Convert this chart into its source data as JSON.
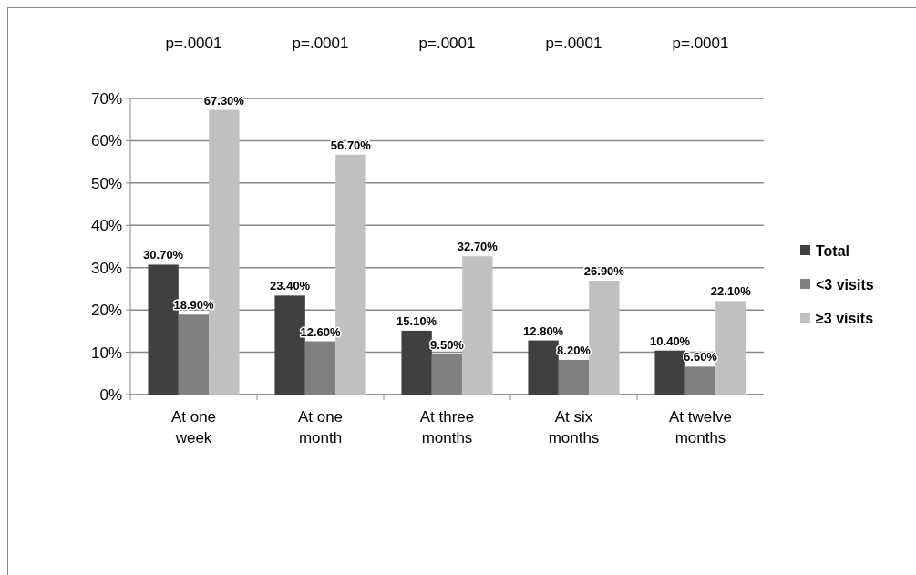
{
  "chart_data": {
    "type": "bar",
    "categories": [
      "At one week",
      "At one month",
      "At three months",
      "At six months",
      "At twelve months"
    ],
    "series": [
      {
        "name": "Total",
        "color": "#404040",
        "values": [
          30.7,
          23.4,
          15.1,
          12.8,
          10.4
        ],
        "value_labels": [
          "30.70%",
          "23.40%",
          "15.10%",
          "12.80%",
          "10.40%"
        ]
      },
      {
        "name": "<3 visits",
        "color": "#808080",
        "values": [
          18.9,
          12.6,
          9.5,
          8.2,
          6.6
        ],
        "value_labels": [
          "18.90%",
          "12.60%",
          "9.50%",
          "8.20%",
          "6.60%"
        ]
      },
      {
        "name": "≥3 visits",
        "color": "#c0c0c0",
        "values": [
          67.3,
          56.7,
          32.7,
          26.9,
          22.1
        ],
        "value_labels": [
          "67.30%",
          "56.70%",
          "32.70%",
          "26.90%",
          "22.10%"
        ]
      }
    ],
    "ylim": [
      0,
      70
    ],
    "yticks": [
      {
        "value": 0,
        "label": "0%"
      },
      {
        "value": 10,
        "label": "10%"
      },
      {
        "value": 20,
        "label": "20%"
      },
      {
        "value": 30,
        "label": "30%"
      },
      {
        "value": 40,
        "label": "40%"
      },
      {
        "value": 50,
        "label": "50%"
      },
      {
        "value": 60,
        "label": "60%"
      },
      {
        "value": 70,
        "label": "70%"
      }
    ],
    "grid": "y",
    "legend": "right",
    "annotations": [
      "p=.0001",
      "p=.0001",
      "p=.0001",
      "p=.0001",
      "p=.0001"
    ]
  }
}
